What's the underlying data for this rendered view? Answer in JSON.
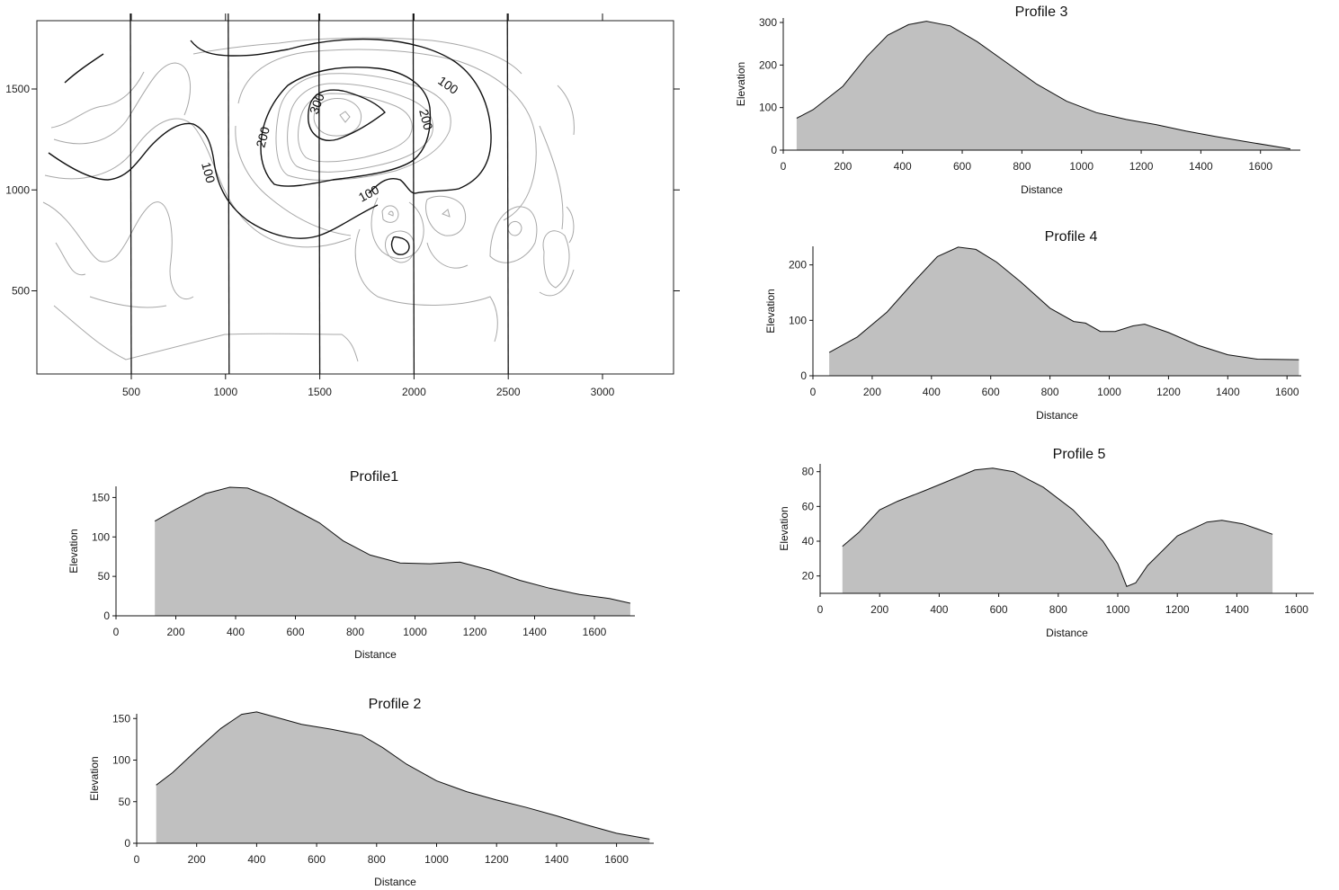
{
  "chart_data": [
    {
      "type": "contour_map",
      "xticks": [
        500,
        1000,
        1500,
        2000,
        2500,
        3000
      ],
      "yticks": [
        500,
        1000,
        1500
      ],
      "xlim": [
        0,
        3400
      ],
      "ylim": [
        50,
        1850
      ],
      "profile_lines_x": [
        500,
        1000,
        1500,
        2000,
        2500
      ],
      "contour_labels": [
        "100",
        "100",
        "100",
        "200",
        "200",
        "300"
      ],
      "colors": {
        "major": "#111111",
        "minor": "#a8a8a8"
      }
    },
    {
      "type": "area",
      "title": "Profile 3",
      "xlabel": "Distance",
      "ylabel": "Elevation",
      "xlim": [
        0,
        1740
      ],
      "ylim": [
        0,
        305
      ],
      "xticks": [
        0,
        200,
        400,
        600,
        800,
        1000,
        1200,
        1400,
        1600
      ],
      "yticks": [
        0,
        100,
        200,
        300
      ],
      "x": [
        45,
        100,
        200,
        280,
        350,
        420,
        480,
        560,
        650,
        750,
        850,
        950,
        1050,
        1150,
        1250,
        1350,
        1450,
        1550,
        1700
      ],
      "y": [
        75,
        95,
        150,
        220,
        270,
        295,
        303,
        292,
        255,
        205,
        155,
        115,
        88,
        72,
        60,
        45,
        32,
        20,
        3
      ],
      "fill": "#c0c0c0"
    },
    {
      "type": "area",
      "title": "Profile 4",
      "xlabel": "Distance",
      "ylabel": "Elevation",
      "xlim": [
        0,
        1670
      ],
      "ylim": [
        0,
        233
      ],
      "xticks": [
        0,
        200,
        400,
        600,
        800,
        1000,
        1200,
        1400,
        1600
      ],
      "yticks": [
        0,
        100,
        200
      ],
      "x": [
        55,
        150,
        250,
        350,
        420,
        490,
        550,
        620,
        700,
        800,
        880,
        920,
        970,
        1020,
        1080,
        1120,
        1200,
        1300,
        1400,
        1500,
        1640
      ],
      "y": [
        42,
        70,
        115,
        175,
        215,
        232,
        228,
        205,
        170,
        122,
        98,
        95,
        80,
        80,
        90,
        93,
        78,
        55,
        38,
        30,
        29
      ],
      "fill": "#c0c0c0"
    },
    {
      "type": "area",
      "title": "Profile1",
      "xlabel": "Distance",
      "ylabel": "Elevation",
      "xlim": [
        0,
        1730
      ],
      "ylim": [
        0,
        165
      ],
      "xticks": [
        0,
        200,
        400,
        600,
        800,
        1000,
        1200,
        1400,
        1600
      ],
      "yticks": [
        0,
        50,
        100,
        150
      ],
      "x": [
        130,
        200,
        300,
        380,
        440,
        520,
        620,
        680,
        760,
        850,
        950,
        1050,
        1150,
        1250,
        1350,
        1450,
        1550,
        1650,
        1720
      ],
      "y": [
        120,
        135,
        155,
        163,
        162,
        150,
        130,
        118,
        95,
        77,
        67,
        66,
        68,
        58,
        45,
        35,
        27,
        22,
        16
      ],
      "fill": "#c0c0c0"
    },
    {
      "type": "area",
      "title": "Profile 2",
      "xlabel": "Distance",
      "ylabel": "Elevation",
      "xlim": [
        0,
        1730
      ],
      "ylim": [
        0,
        158
      ],
      "xticks": [
        0,
        200,
        400,
        600,
        800,
        1000,
        1200,
        1400,
        1600
      ],
      "yticks": [
        0,
        50,
        100,
        150
      ],
      "x": [
        65,
        120,
        200,
        280,
        350,
        400,
        450,
        550,
        650,
        750,
        820,
        900,
        1000,
        1100,
        1200,
        1300,
        1400,
        1500,
        1600,
        1710
      ],
      "y": [
        70,
        85,
        112,
        138,
        155,
        158,
        153,
        143,
        137,
        130,
        115,
        95,
        75,
        62,
        52,
        43,
        33,
        22,
        12,
        5
      ],
      "fill": "#c0c0c0"
    },
    {
      "type": "area",
      "title": "Profile 5",
      "xlabel": "Distance",
      "ylabel": "Elevation",
      "xlim": [
        0,
        1740
      ],
      "ylim": [
        10,
        84
      ],
      "xticks": [
        0,
        200,
        400,
        600,
        800,
        1000,
        1200,
        1400,
        1600
      ],
      "yticks": [
        20,
        40,
        60,
        80
      ],
      "x": [
        75,
        130,
        200,
        260,
        350,
        450,
        520,
        580,
        650,
        750,
        850,
        950,
        1000,
        1030,
        1060,
        1100,
        1200,
        1300,
        1350,
        1420,
        1520
      ],
      "y": [
        37,
        45,
        58,
        63,
        69,
        76,
        81,
        82,
        80,
        71,
        58,
        40,
        27,
        14,
        16,
        26,
        43,
        51,
        52,
        50,
        44
      ],
      "fill": "#c0c0c0"
    }
  ]
}
